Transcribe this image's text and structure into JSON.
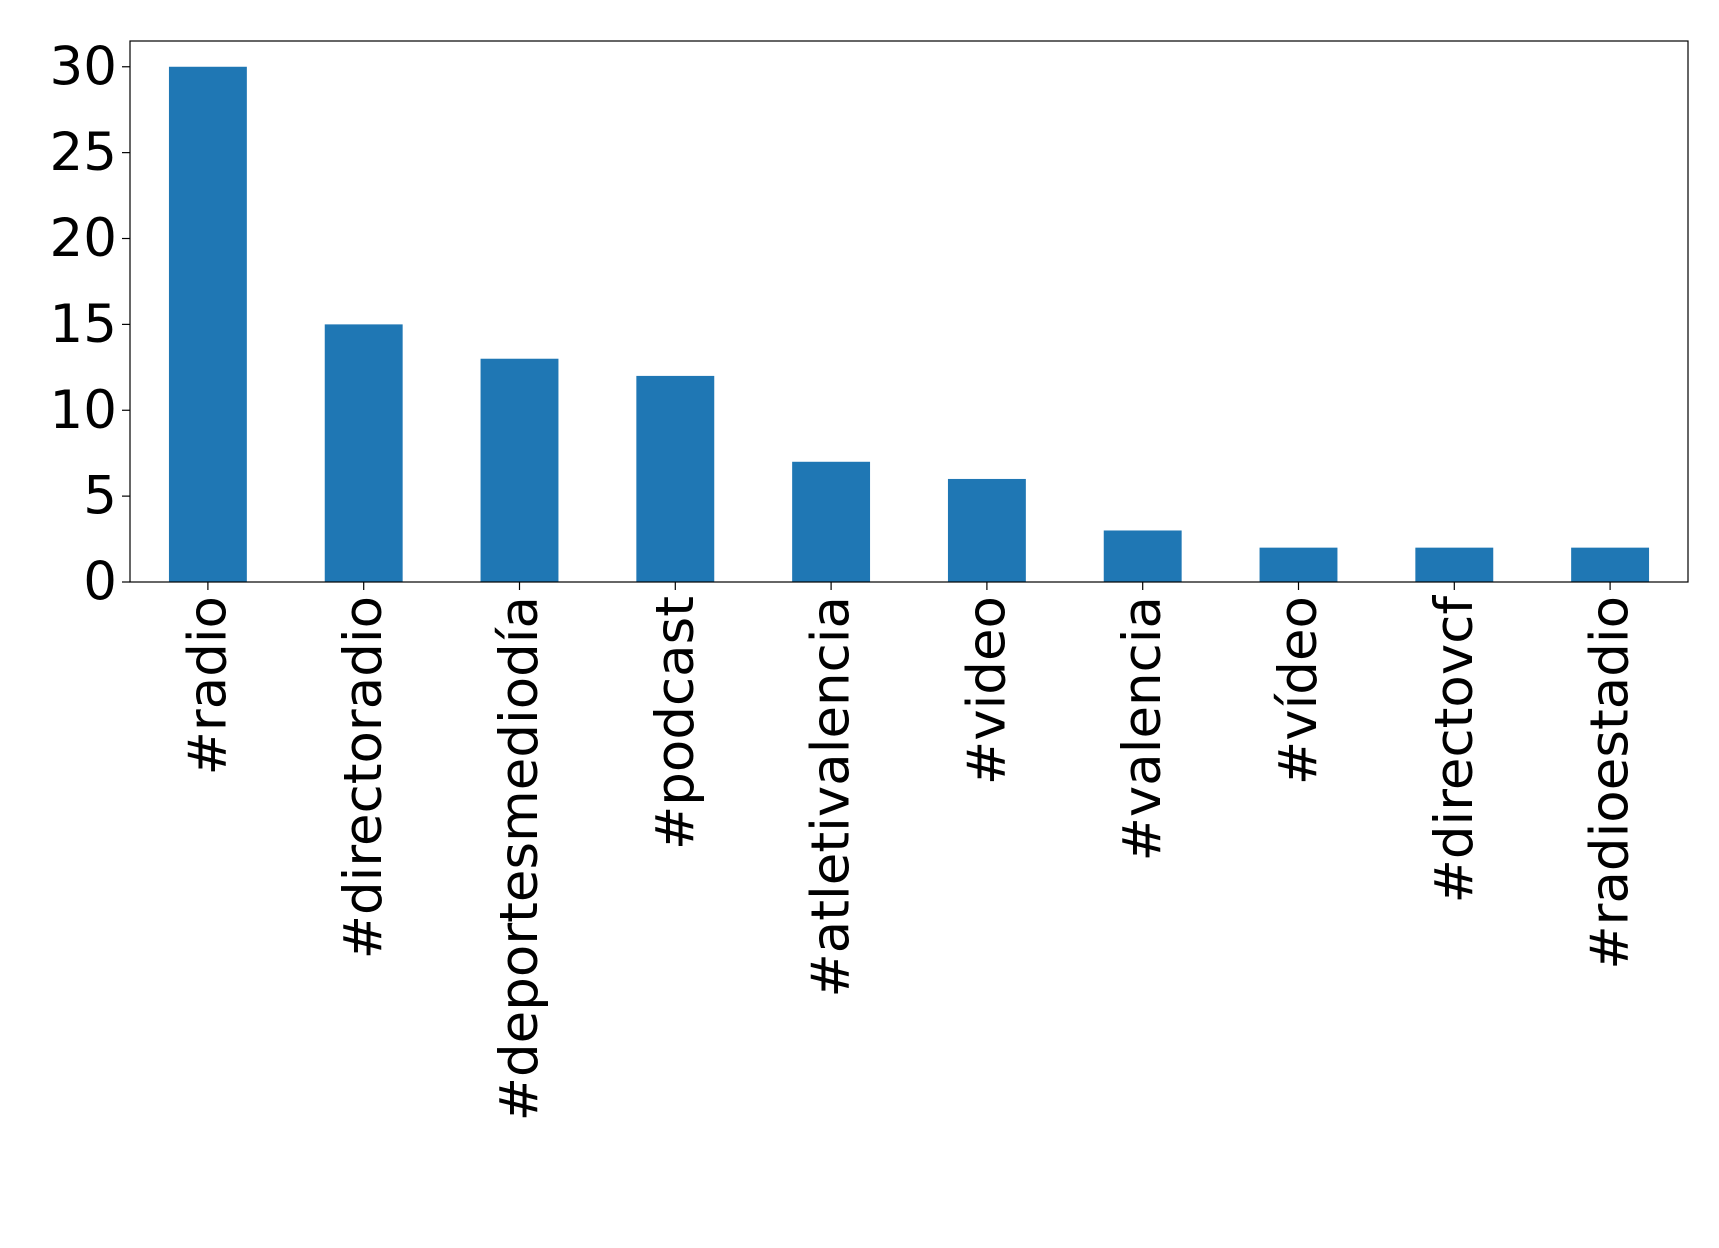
{
  "chart_data": {
    "type": "bar",
    "categories": [
      "#radio",
      "#directoradio",
      "#deportesmediodía",
      "#podcast",
      "#atletivalencia",
      "#video",
      "#valencia",
      "#vídeo",
      "#directovcf",
      "#radioestadio"
    ],
    "values": [
      30,
      15,
      13,
      12,
      7,
      6,
      3,
      2,
      2,
      2
    ],
    "color": "#1f77b4",
    "ylim": [
      0,
      31.5
    ],
    "yticks": [
      0,
      5,
      10,
      15,
      20,
      25,
      30
    ],
    "grid": false
  }
}
